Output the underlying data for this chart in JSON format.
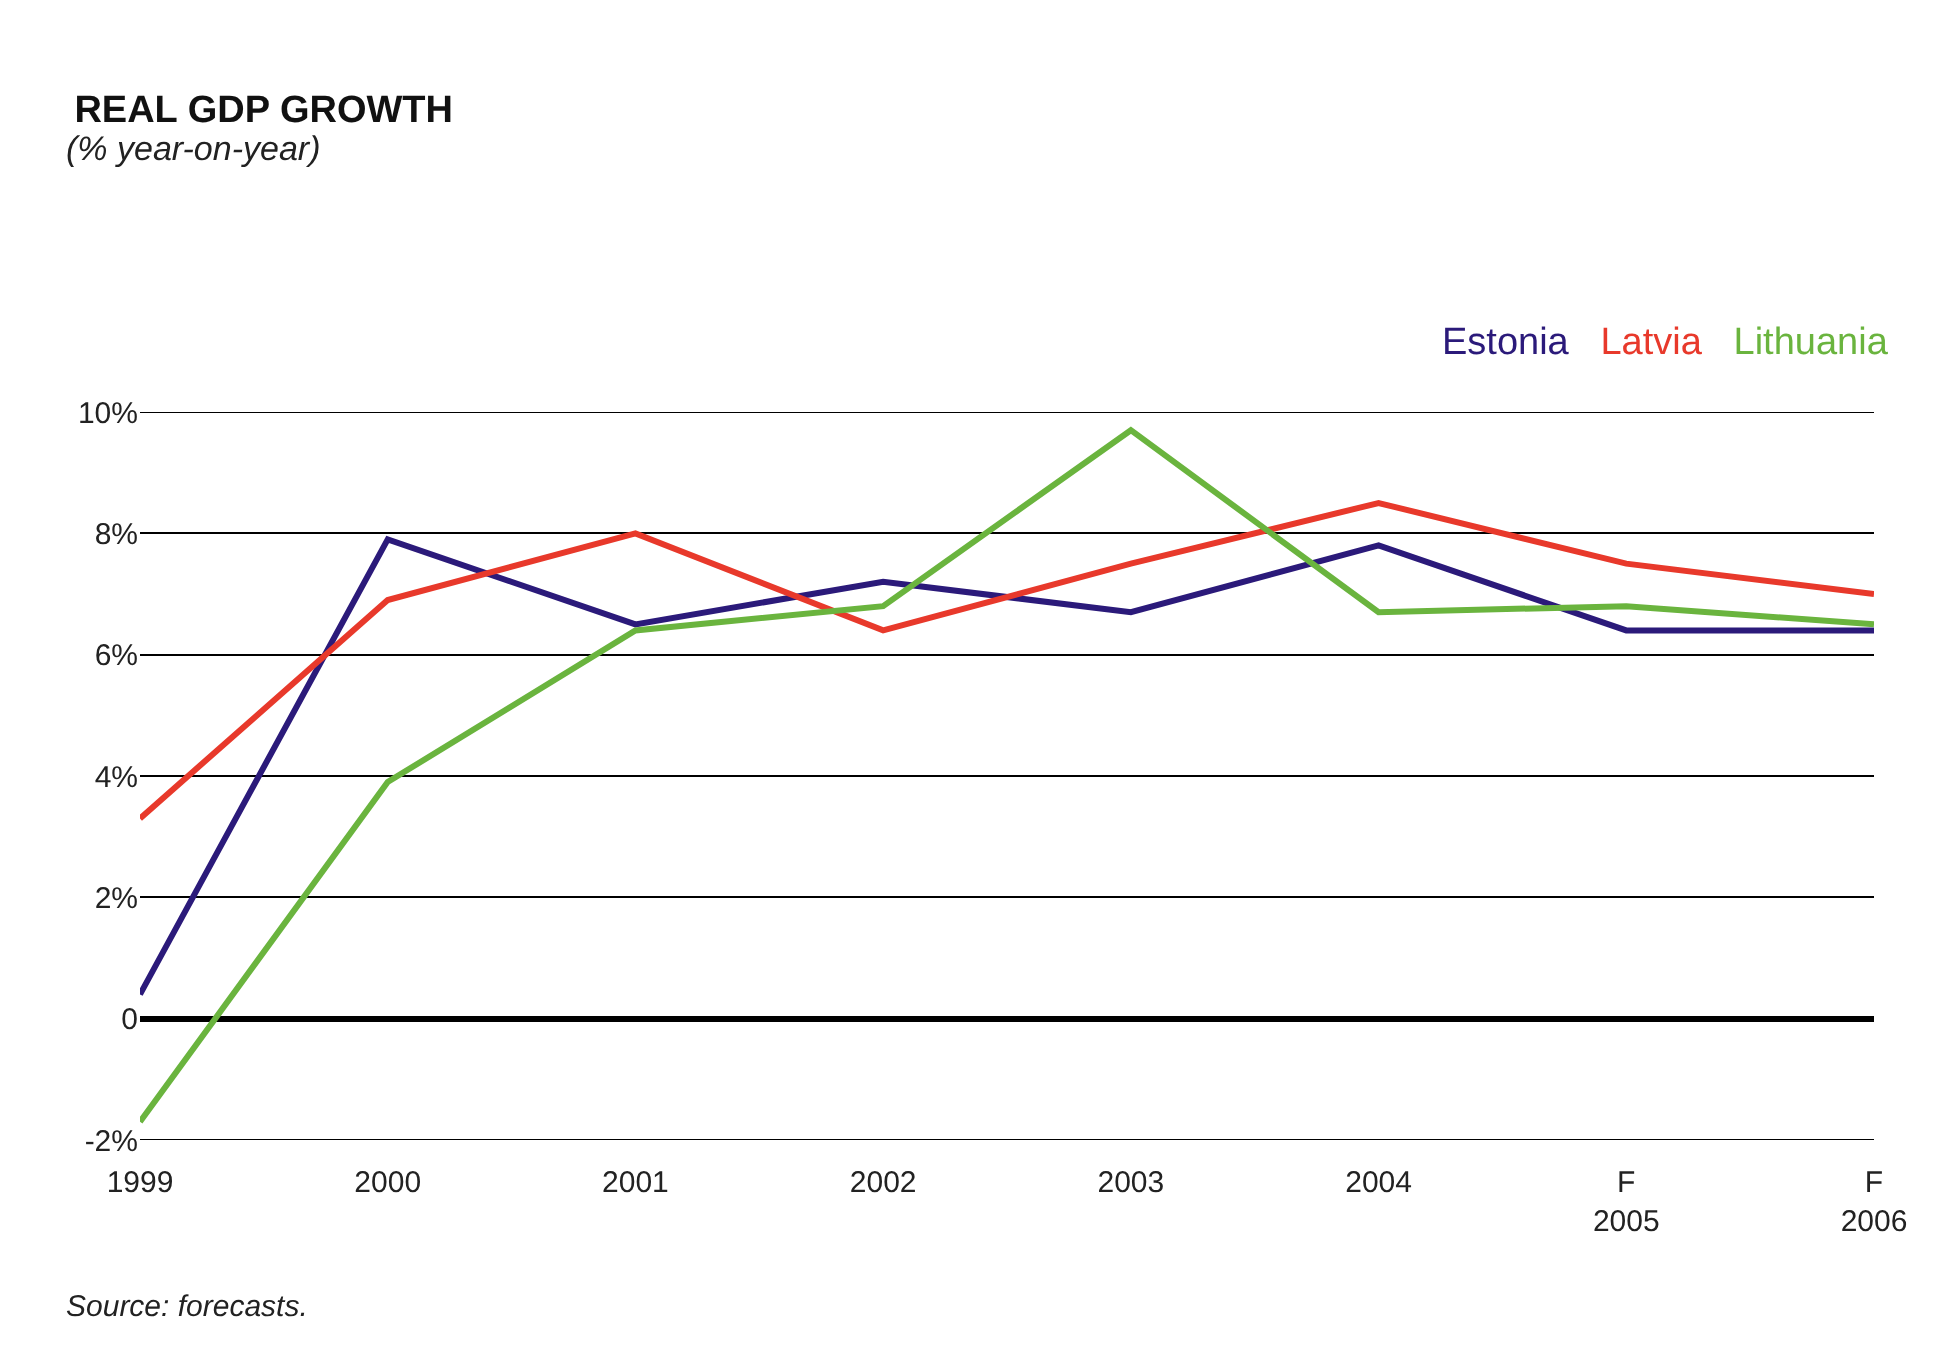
{
  "chart_data": {
    "type": "line",
    "title": "REAL GDP GROWTH",
    "subtitle": "(% year-on-year)",
    "categories": [
      "1999",
      "2000",
      "2001",
      "2002",
      "2003",
      "2004",
      "F\n2005",
      "F\n2006"
    ],
    "series": [
      {
        "name": "Estonia",
        "color": "#2b1a7a",
        "values": [
          0.4,
          7.9,
          6.5,
          7.2,
          6.7,
          7.8,
          6.4,
          6.4
        ]
      },
      {
        "name": "Latvia",
        "color": "#e8392b",
        "values": [
          3.3,
          6.9,
          8.0,
          6.4,
          7.5,
          8.5,
          7.5,
          7.0
        ]
      },
      {
        "name": "Lithuania",
        "color": "#6ab43e",
        "values": [
          -1.7,
          3.9,
          6.4,
          6.8,
          9.7,
          6.7,
          6.8,
          6.5
        ]
      }
    ],
    "ylim": [
      -2,
      10
    ],
    "yticks": [
      {
        "value": -2,
        "label": "-2%"
      },
      {
        "value": 0,
        "label": "0"
      },
      {
        "value": 2,
        "label": "2%"
      },
      {
        "value": 4,
        "label": "4%"
      },
      {
        "value": 6,
        "label": "6%"
      },
      {
        "value": 8,
        "label": "8%"
      },
      {
        "value": 10,
        "label": "10%"
      }
    ],
    "grid": "y",
    "legend": "top right",
    "marker": "none",
    "line_style": "solid",
    "annotations": [
      "Source: forecasts."
    ]
  }
}
